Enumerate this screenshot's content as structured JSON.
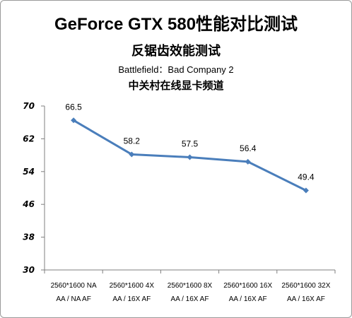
{
  "titles": {
    "main": "GeForce GTX 580性能对比测试",
    "sub": "反锯齿效能测试",
    "game": "Battlefield：Bad  Company  2",
    "source": "中关村在线显卡频道"
  },
  "colors": {
    "line": "#4a7ebb",
    "axis": "#7f7f7f",
    "grid": "#7f7f7f"
  },
  "chart_data": {
    "type": "line",
    "title": "GeForce GTX 580性能对比测试",
    "categories": [
      [
        "2560*1600 NA",
        "AA / NA AF"
      ],
      [
        "2560*1600 4X",
        "AA / 16X AF"
      ],
      [
        "2560*1600 8X",
        "AA / 16X AF"
      ],
      [
        "2560*1600 16X",
        "AA / 16X AF"
      ],
      [
        "2560*1600 32X",
        "AA / 16X AF"
      ]
    ],
    "values": [
      66.5,
      58.2,
      57.5,
      56.4,
      49.4
    ],
    "data_labels": [
      "66.5",
      "58.2",
      "57.5",
      "56.4",
      "49.4"
    ],
    "ylim": [
      30,
      70
    ],
    "yticks": [
      30,
      38,
      46,
      54,
      62,
      70
    ],
    "grid": false,
    "legend": "none"
  }
}
